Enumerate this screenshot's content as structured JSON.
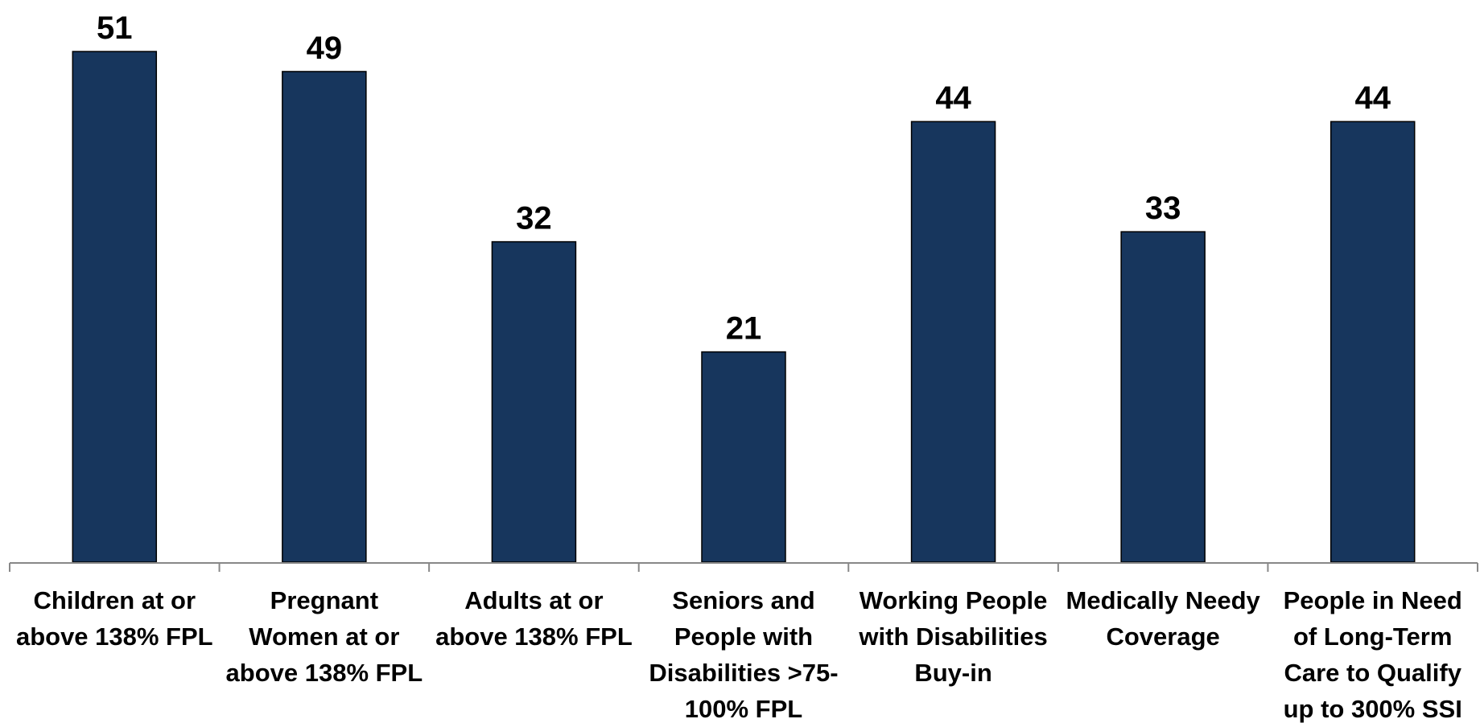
{
  "chart_data": {
    "type": "bar",
    "title": "",
    "xlabel": "",
    "ylabel": "",
    "ylim": [
      0,
      55
    ],
    "grid": false,
    "legend": "none",
    "bar_color": "#17365d",
    "categories": [
      [
        "Children at or",
        "above 138% FPL"
      ],
      [
        "Pregnant",
        "Women at or",
        "above 138% FPL"
      ],
      [
        "Adults at or",
        "above 138% FPL"
      ],
      [
        "Seniors and",
        "People with",
        "Disabilities >75-",
        "100% FPL"
      ],
      [
        "Working People",
        "with Disabilities",
        "Buy-in"
      ],
      [
        "Medically Needy",
        "Coverage"
      ],
      [
        "People in Need",
        "of Long-Term",
        "Care to Qualify",
        "up to 300% SSI"
      ]
    ],
    "values": [
      51,
      49,
      32,
      21,
      44,
      33,
      44
    ],
    "value_labels": [
      "51",
      "49",
      "32",
      "21",
      "44",
      "33",
      "44"
    ]
  }
}
